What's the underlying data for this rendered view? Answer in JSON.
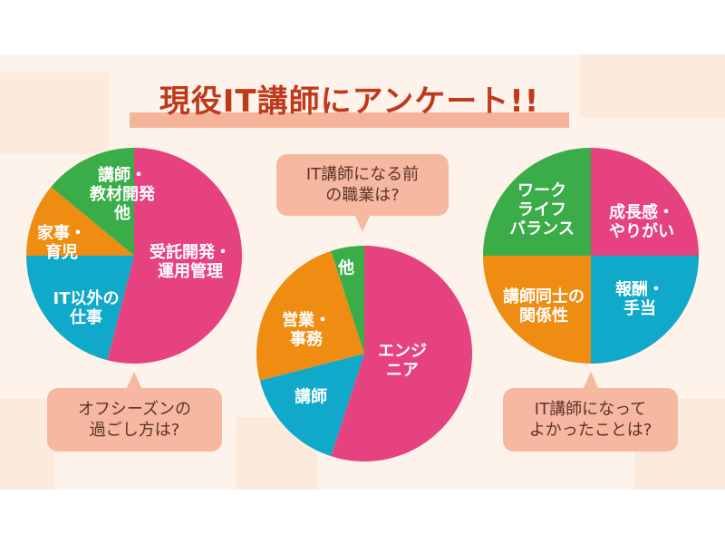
{
  "title": "現役IT講師にアンケート!!",
  "colors": {
    "pink": "#e6427f",
    "cyan": "#10a9c9",
    "orange": "#ef8c12",
    "green": "#3aad49",
    "bubble": "#f7b8a2",
    "title": "#c0391b"
  },
  "chart_data": [
    {
      "type": "pie",
      "question": "オフシーズンの\n過ごし方は?",
      "start": "top",
      "direction": "clockwise",
      "slices": [
        {
          "label": "受託開発・\n運用管理",
          "value": 54,
          "color": "#e6427f"
        },
        {
          "label": "IT以外の\n仕事",
          "value": 21,
          "color": "#10a9c9"
        },
        {
          "label": "家事・\n育児",
          "value": 11,
          "color": "#ef8c12"
        },
        {
          "label": "講師・\n教材開発\n他",
          "value": 14,
          "color": "#3aad49"
        }
      ]
    },
    {
      "type": "pie",
      "question": "IT講師になる前\nの職業は?",
      "start": "top",
      "direction": "clockwise",
      "slices": [
        {
          "label": "エンジ\nニア",
          "value": 55,
          "color": "#e6427f"
        },
        {
          "label": "講師",
          "value": 16,
          "color": "#10a9c9"
        },
        {
          "label": "営業・\n事務",
          "value": 24,
          "color": "#ef8c12"
        },
        {
          "label": "他",
          "value": 5,
          "color": "#3aad49"
        }
      ]
    },
    {
      "type": "pie",
      "question": "IT講師になって\nよかったことは?",
      "start": "top",
      "direction": "clockwise",
      "slices": [
        {
          "label": "成長感・\nやりがい",
          "value": 25,
          "color": "#e6427f"
        },
        {
          "label": "報酬・\n手当",
          "value": 25,
          "color": "#10a9c9"
        },
        {
          "label": "講師同士の\n関係性",
          "value": 25,
          "color": "#ef8c12"
        },
        {
          "label": "ワーク\nライフ\nバランス",
          "value": 25,
          "color": "#3aad49"
        }
      ]
    }
  ]
}
